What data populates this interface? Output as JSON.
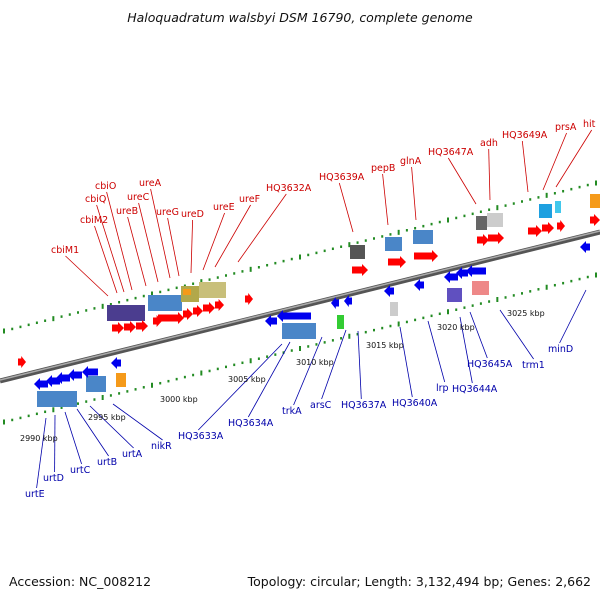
{
  "title": "Haloquadratum walsbyi DSM 16790, complete genome",
  "footer": {
    "accession": "Accession: NC_008212",
    "summary": "Topology: circular; Length: 3,132,494 bp; Genes: 2,662"
  },
  "colors": {
    "forward_label": "#cc0000",
    "reverse_label": "#0000aa",
    "forward_arrow": "#ff0000",
    "reverse_arrow": "#0000ee",
    "backbone": "#888888",
    "tick": "#228b22"
  },
  "scale_labels": [
    "2990 kbp",
    "2995 kbp",
    "3000 kbp",
    "3005 kbp",
    "3010 kbp",
    "3015 kbp",
    "3020 kbp",
    "3025 kbp"
  ],
  "top_genes": [
    "cbiM1",
    "cbiM2",
    "cbiQ",
    "cbiO",
    "ureB",
    "ureC",
    "ureA",
    "ureG",
    "ureD",
    "ureE",
    "ureF",
    "HQ3632A",
    "HQ3639A",
    "pepB",
    "glnA",
    "HQ3647A",
    "adh",
    "HQ3649A",
    "prsA",
    "hit"
  ],
  "bottom_genes": [
    "urtE",
    "urtD",
    "urtC",
    "urtB",
    "urtA",
    "nikR",
    "HQ3633A",
    "HQ3634A",
    "trkA",
    "arsC",
    "HQ3637A",
    "HQ3640A",
    "lrp",
    "HQ3644A",
    "HQ3645A",
    "trm1",
    "minD"
  ]
}
